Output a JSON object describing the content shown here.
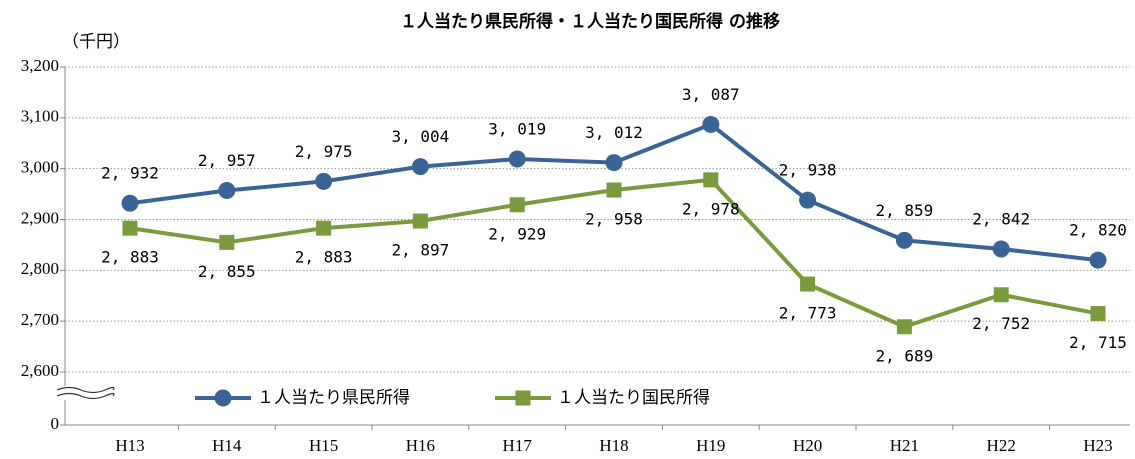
{
  "chart_data": {
    "type": "line",
    "title": "１人当たり県民所得・１人当たり国民所得 の推移",
    "y_label": "（千円）",
    "categories": [
      "H13",
      "H14",
      "H15",
      "H16",
      "H17",
      "H18",
      "H19",
      "H20",
      "H21",
      "H22",
      "H23"
    ],
    "series": [
      {
        "name": "１人当たり県民所得",
        "color": "#3b6496",
        "marker": "circle",
        "values": [
          2932,
          2957,
          2975,
          3004,
          3019,
          3012,
          3087,
          2938,
          2859,
          2842,
          2820
        ],
        "value_labels": [
          "2, 932",
          "2, 957",
          "2, 975",
          "3, 004",
          "3, 019",
          "3, 012",
          "3, 087",
          "2, 938",
          "2, 859",
          "2, 842",
          "2, 820"
        ]
      },
      {
        "name": "１人当たり国民所得",
        "color": "#7b9a3d",
        "marker": "square",
        "values": [
          2883,
          2855,
          2883,
          2897,
          2929,
          2958,
          2978,
          2773,
          2689,
          2752,
          2715
        ],
        "value_labels": [
          "2, 883",
          "2, 855",
          "2, 883",
          "2, 897",
          "2, 929",
          "2, 958",
          "2, 978",
          "2, 773",
          "2, 689",
          "2, 752",
          "2, 715"
        ]
      }
    ],
    "ylim": [
      0,
      3200
    ],
    "yticks": [
      0,
      {
        "value": 2600,
        "label": "2,600"
      },
      {
        "value": 2700,
        "label": "2,700"
      },
      {
        "value": 2800,
        "label": "2,800"
      },
      {
        "value": 2900,
        "label": "2,900"
      },
      {
        "value": 3000,
        "label": "3,000"
      },
      {
        "value": 3100,
        "label": "3,100"
      },
      {
        "value": 3200,
        "label": "3,200"
      }
    ],
    "axis_break": true,
    "grid": true
  }
}
